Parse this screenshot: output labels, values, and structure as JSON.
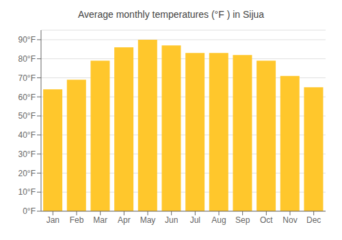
{
  "chart_data": {
    "type": "bar",
    "title": "Average monthly temperatures (°F ) in Sijua",
    "categories": [
      "Jan",
      "Feb",
      "Mar",
      "Apr",
      "May",
      "Jun",
      "Jul",
      "Aug",
      "Sep",
      "Oct",
      "Nov",
      "Dec"
    ],
    "values": [
      64,
      69,
      79,
      86,
      90,
      87,
      83,
      83,
      82,
      79,
      71,
      65
    ],
    "color": "#FFC72C",
    "ylim": [
      0,
      95
    ],
    "yticks": [
      {
        "value": 0,
        "label": "0°F"
      },
      {
        "value": 10,
        "label": "10°F"
      },
      {
        "value": 20,
        "label": "20°F"
      },
      {
        "value": 30,
        "label": "30°F"
      },
      {
        "value": 40,
        "label": "40°F"
      },
      {
        "value": 50,
        "label": "50°F"
      },
      {
        "value": 60,
        "label": "60°F"
      },
      {
        "value": 70,
        "label": "70°F"
      },
      {
        "value": 80,
        "label": "80°F"
      },
      {
        "value": 90,
        "label": "90°F"
      }
    ],
    "grid": true
  }
}
